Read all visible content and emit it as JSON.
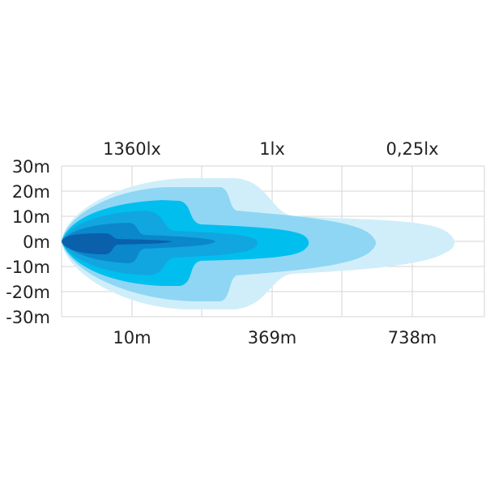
{
  "chart_data": {
    "type": "contour",
    "title": "",
    "y_ticks": [
      "30m",
      "20m",
      "10m",
      "0m",
      "-10m",
      "-20m",
      "-30m"
    ],
    "ylim": [
      -30,
      30
    ],
    "grid": true,
    "top_labels": [
      "1360lx",
      "1lx",
      "0,25lx"
    ],
    "bottom_labels": [
      "10m",
      "369m",
      "738m"
    ],
    "contour_colors": [
      "#d0eefa",
      "#8fd6f4",
      "#00bfee",
      "#12a6e0",
      "#0b87cb",
      "#0a60ab"
    ],
    "grid_color": "#d6d6d6"
  }
}
